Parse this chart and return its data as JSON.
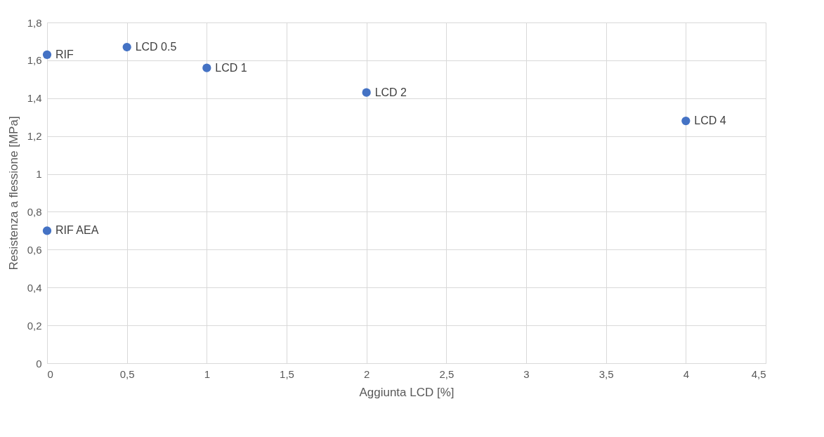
{
  "chart_data": {
    "type": "scatter",
    "xlabel": "Aggiunta LCD [%]",
    "ylabel": "Resistenza a flessione [MPa]",
    "x": [
      0,
      0,
      0.5,
      1,
      2,
      4
    ],
    "series": [
      {
        "color": "#4472c4",
        "values": [
          1.63,
          0.7,
          1.67,
          1.56,
          1.43,
          1.28
        ]
      }
    ],
    "annotations": [
      {
        "text": "RIF",
        "x": 0,
        "y": 1.63
      },
      {
        "text": "RIF AEA",
        "x": 0,
        "y": 0.7
      },
      {
        "text": "LCD 0.5",
        "x": 0.5,
        "y": 1.67
      },
      {
        "text": "LCD 1",
        "x": 1,
        "y": 1.56
      },
      {
        "text": "LCD 2",
        "x": 2,
        "y": 1.43
      },
      {
        "text": "LCD 4",
        "x": 4,
        "y": 1.28
      }
    ],
    "xlim": [
      0,
      4.5
    ],
    "xticks": [
      0,
      {
        "value": 0.5,
        "label": "0,5"
      },
      1,
      {
        "value": 1.5,
        "label": "1,5"
      },
      2,
      {
        "value": 2.5,
        "label": "2,5"
      },
      3,
      {
        "value": 3.5,
        "label": "3,5"
      },
      4,
      {
        "value": 4.5,
        "label": "4,5"
      }
    ],
    "ylim": [
      0,
      1.8
    ],
    "yticks": [
      0,
      {
        "value": 0.2,
        "label": "0,2"
      },
      {
        "value": 0.4,
        "label": "0,4"
      },
      {
        "value": 0.6,
        "label": "0,6"
      },
      {
        "value": 0.8,
        "label": "0,8"
      },
      1,
      {
        "value": 1.2,
        "label": "1,2"
      },
      {
        "value": 1.4,
        "label": "1,4"
      },
      {
        "value": 1.6,
        "label": "1,6"
      },
      {
        "value": 1.8,
        "label": "1,8"
      }
    ],
    "grid": true,
    "marker": "circle"
  }
}
